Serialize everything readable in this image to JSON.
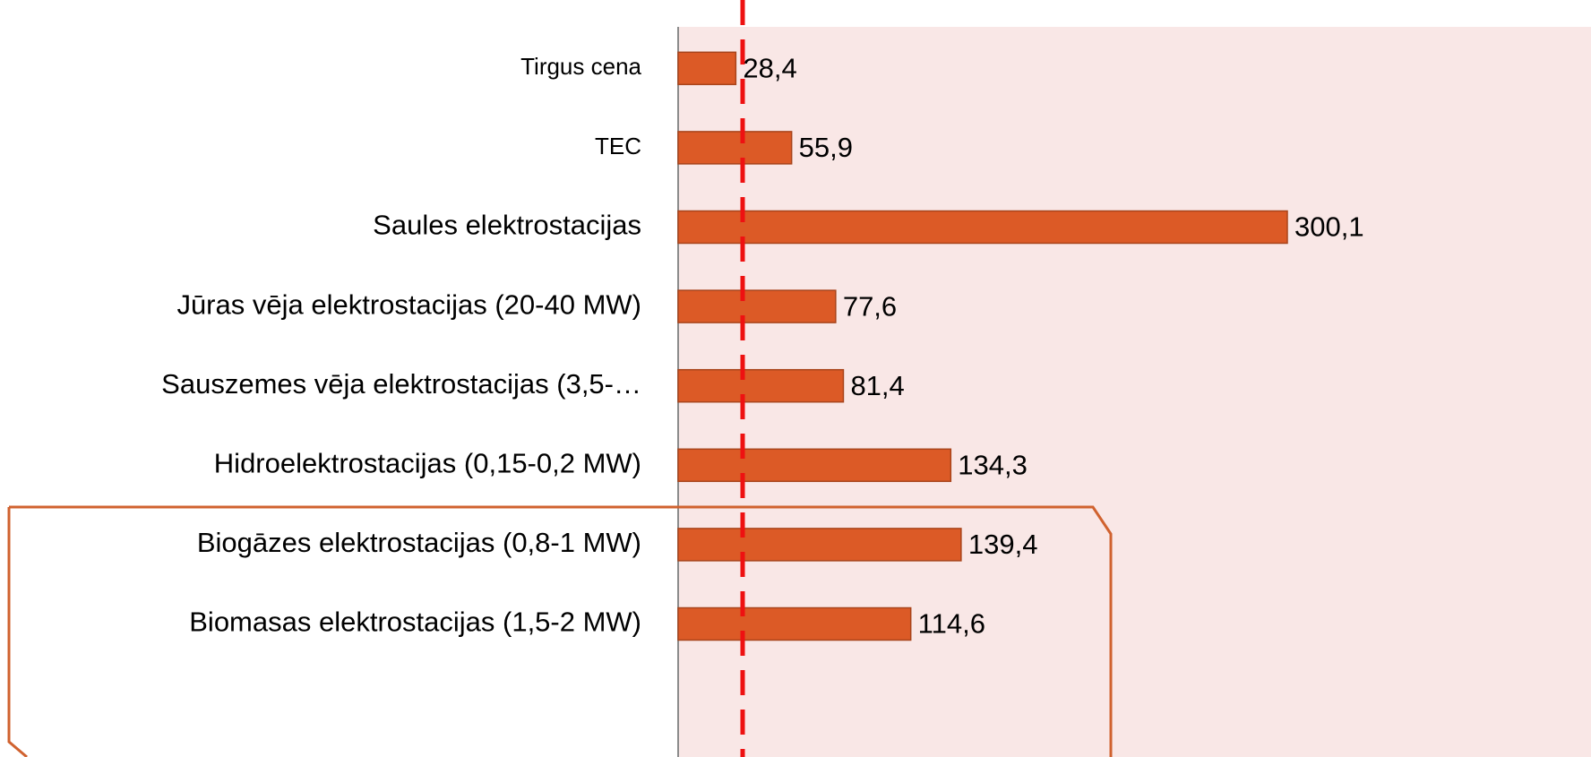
{
  "chart_data": {
    "type": "bar",
    "categories": [
      "Tirgus cena",
      "TEC",
      "Saules elektrostacijas",
      "Jūras vēja elektrostacijas (20-40 MW)",
      "Sauszemes vēja elektrostacijas (3,5-…",
      "Hidroelektrostacijas (0,15-0,2 MW)",
      "Biogāzes elektrostacijas (0,8-1 MW)",
      "Biomasas elektrostacijas (1,5-2 MW)"
    ],
    "values": [
      28.4,
      55.9,
      300.1,
      77.6,
      81.4,
      134.3,
      139.4,
      114.6
    ],
    "value_labels": [
      "28,4",
      "55,9",
      "300,1",
      "77,6",
      "81,4",
      "134,3",
      "139,4",
      "114,6"
    ],
    "color": "#dc5a26"
  }
}
